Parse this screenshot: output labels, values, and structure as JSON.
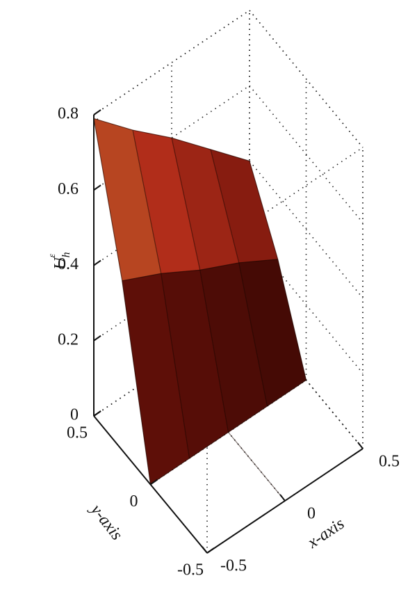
{
  "chart_data": {
    "type": "surface",
    "zlabel": {
      "text": "U",
      "sub": "h",
      "sup": "ε"
    },
    "xlabel": "x-axis",
    "ylabel": "y-axis",
    "x": [
      -0.5,
      -0.25,
      0,
      0.25,
      0.5
    ],
    "y": [
      -0.5,
      -0.25,
      0,
      0.25,
      0.5
    ],
    "z": [
      [
        null,
        null,
        0,
        null,
        null
      ],
      [
        null,
        null,
        0,
        null,
        null
      ],
      [
        0,
        0,
        0,
        0,
        0
      ],
      [
        0.45,
        0.4,
        0.34,
        0.29,
        0.23
      ],
      [
        0.79,
        0.69,
        0.6,
        0.5,
        0.4
      ]
    ],
    "xlim": [
      -0.5,
      0.5
    ],
    "ylim": [
      -0.5,
      0.5
    ],
    "zlim": [
      0,
      0.8
    ],
    "xticks": [
      -0.5,
      0,
      0.5
    ],
    "yticks": [
      -0.5,
      0,
      0.5
    ],
    "zticks": [
      0,
      0.2,
      0.4,
      0.6,
      0.8
    ],
    "grid": true,
    "colormap": [
      "#1e0300",
      "#6e120a",
      "#b8301c",
      "#b0a038"
    ]
  }
}
